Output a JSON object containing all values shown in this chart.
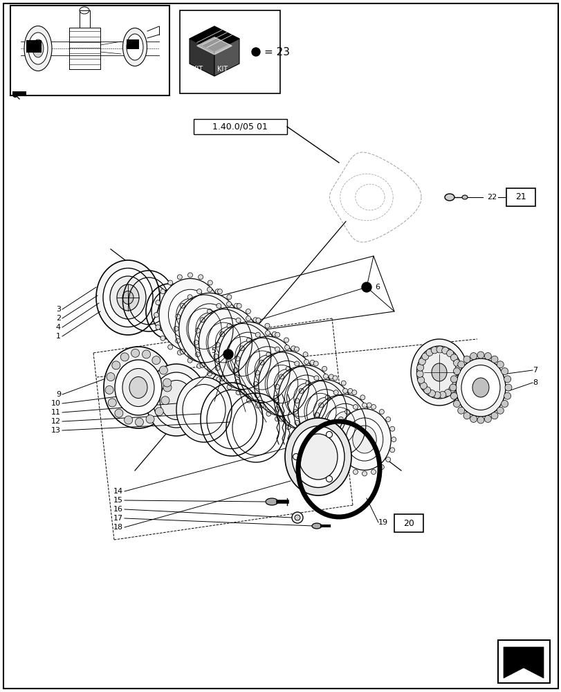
{
  "bg_color": "#ffffff",
  "line_color": "#000000",
  "gray_color": "#aaaaaa",
  "figsize": [
    8.12,
    10.0
  ],
  "dpi": 100,
  "ref_box_text": "1.40.0/05 01",
  "kit_text": "= 23"
}
